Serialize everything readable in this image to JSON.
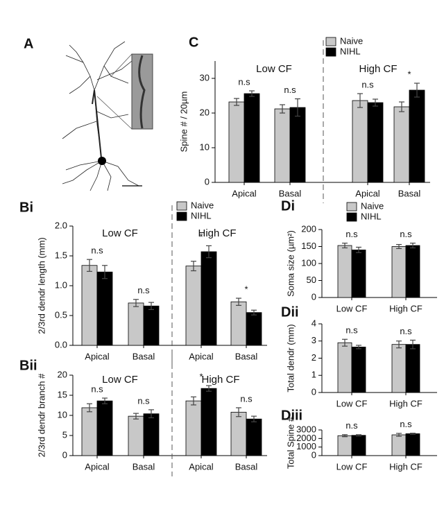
{
  "image_panel_label": "A",
  "chart_data": [
    {
      "type": "bar",
      "panel": "C",
      "ylabel": "Spine # / 20µm",
      "categories": [
        "Apical",
        "Basal",
        "Apical",
        "Basal"
      ],
      "group_labels": [
        "Low CF",
        "High CF"
      ],
      "series": [
        {
          "name": "Naive",
          "color": "#c8c8c8",
          "values": [
            23.2,
            21.2,
            23.6,
            21.8
          ],
          "errors": [
            1,
            1.2,
            2,
            1.4
          ]
        },
        {
          "name": "NIHL",
          "color": "#000000",
          "values": [
            25.6,
            21.6,
            23,
            26.6
          ],
          "errors": [
            0.8,
            2.5,
            1,
            2
          ]
        }
      ],
      "annotations": [
        "n.s",
        "n.s",
        "n.s",
        "*"
      ],
      "ylim": [
        0,
        35
      ],
      "yticks": [
        0,
        10,
        20,
        30
      ],
      "legend": true,
      "divider": true
    },
    {
      "type": "bar",
      "panel": "Bi",
      "ylabel": "2/3rd dendr length (mm)",
      "categories": [
        "Apical",
        "Basal",
        "Apical",
        "Basal"
      ],
      "group_labels": [
        "Low CF",
        "High CF"
      ],
      "series": [
        {
          "name": "Naive",
          "color": "#c8c8c8",
          "values": [
            1.34,
            0.71,
            1.33,
            0.73
          ],
          "errors": [
            0.1,
            0.06,
            0.08,
            0.06
          ]
        },
        {
          "name": "NIHL",
          "color": "#000000",
          "values": [
            1.23,
            0.66,
            1.57,
            0.55
          ],
          "errors": [
            0.11,
            0.06,
            0.1,
            0.04
          ]
        }
      ],
      "annotations": [
        "n.s",
        "n.s",
        "*",
        "*"
      ],
      "ylim": [
        0,
        2
      ],
      "yticks": [
        {
          "value": 0,
          "label": "0.0"
        },
        {
          "value": 0.5,
          "label": "0.5"
        },
        {
          "value": 1,
          "label": "1.0"
        },
        {
          "value": 1.5,
          "label": "1.5"
        },
        {
          "value": 2,
          "label": "2.0"
        }
      ],
      "legend": true,
      "divider": true
    },
    {
      "type": "bar",
      "panel": "Bii",
      "ylabel": "2/3rd dendr branch #",
      "categories": [
        "Apical",
        "Basal",
        "Apical",
        "Basal"
      ],
      "group_labels": [
        "Low CF",
        "High CF"
      ],
      "series": [
        {
          "name": "Naive",
          "color": "#c8c8c8",
          "values": [
            11.9,
            9.8,
            13.6,
            10.8
          ],
          "errors": [
            1,
            0.7,
            1,
            1.1
          ]
        },
        {
          "name": "NIHL",
          "color": "#000000",
          "values": [
            13.6,
            10.4,
            16.7,
            9.1
          ],
          "errors": [
            0.7,
            1,
            0.7,
            0.7
          ]
        }
      ],
      "annotations": [
        "n.s",
        "n.s",
        "*",
        "n.s"
      ],
      "ylim": [
        0,
        20
      ],
      "yticks": [
        0,
        5,
        10,
        15,
        20
      ],
      "legend": false,
      "divider": true
    },
    {
      "type": "bar",
      "panel": "Di",
      "ylabel": "Soma size (µm²)",
      "categories": [
        "Low CF",
        "High CF"
      ],
      "series": [
        {
          "name": "Naive",
          "color": "#c8c8c8",
          "values": [
            153,
            150
          ],
          "errors": [
            7,
            6
          ]
        },
        {
          "name": "NIHL",
          "color": "#000000",
          "values": [
            140,
            153
          ],
          "errors": [
            8,
            7
          ]
        }
      ],
      "annotations": [
        "n.s",
        "n.s"
      ],
      "ylim": [
        0,
        200
      ],
      "yticks": [
        0,
        50,
        100,
        150,
        200
      ],
      "legend": true,
      "divider": false
    },
    {
      "type": "bar",
      "panel": "Dii",
      "ylabel": "Total dendr (mm)",
      "categories": [
        "Low CF",
        "High CF"
      ],
      "series": [
        {
          "name": "Naive",
          "color": "#c8c8c8",
          "values": [
            2.9,
            2.8
          ],
          "errors": [
            0.2,
            0.2
          ]
        },
        {
          "name": "NIHL",
          "color": "#000000",
          "values": [
            2.65,
            2.8
          ],
          "errors": [
            0.1,
            0.25
          ]
        }
      ],
      "annotations": [
        "n.s",
        "n.s"
      ],
      "ylim": [
        0,
        4
      ],
      "yticks": [
        0,
        1,
        2,
        3,
        4
      ],
      "legend": false,
      "divider": false
    },
    {
      "type": "bar",
      "panel": "Diii",
      "ylabel": "Total Spine #",
      "categories": [
        "Low CF",
        "High CF"
      ],
      "series": [
        {
          "name": "Naive",
          "color": "#c8c8c8",
          "values": [
            2330,
            2430
          ],
          "errors": [
            120,
            170
          ]
        },
        {
          "name": "NIHL",
          "color": "#000000",
          "values": [
            2370,
            2560
          ],
          "errors": [
            70,
            60
          ]
        }
      ],
      "annotations": [
        "n.s",
        "n.s"
      ],
      "ylim": [
        0,
        3000
      ],
      "yticks": [
        0,
        1000,
        2000,
        3000
      ],
      "legend": false,
      "divider": false
    }
  ]
}
